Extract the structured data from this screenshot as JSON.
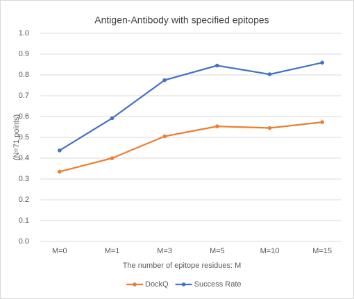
{
  "chart_data": {
    "type": "line",
    "title": "Antigen-Antibody with specified epitopes",
    "xlabel": "The number of epitope residues: M",
    "ylabel": "(N=71 points)",
    "categories": [
      "M=0",
      "M=1",
      "M=3",
      "M=5",
      "M=10",
      "M=15"
    ],
    "series": [
      {
        "name": "DockQ",
        "color": "#ed7d31",
        "values": [
          0.335,
          0.4,
          0.505,
          0.553,
          0.545,
          0.573
        ]
      },
      {
        "name": "Success Rate",
        "color": "#4472c4",
        "values": [
          0.437,
          0.592,
          0.775,
          0.845,
          0.803,
          0.859
        ]
      }
    ],
    "ylim": [
      0,
      1
    ],
    "yticks": [
      {
        "value": 0,
        "label": "0.0"
      },
      0.1,
      0.2,
      0.3,
      0.4,
      0.5,
      0.6,
      0.7,
      0.8,
      0.9,
      {
        "value": 1,
        "label": "1.0"
      }
    ],
    "grid": true,
    "legend": "bottom"
  }
}
